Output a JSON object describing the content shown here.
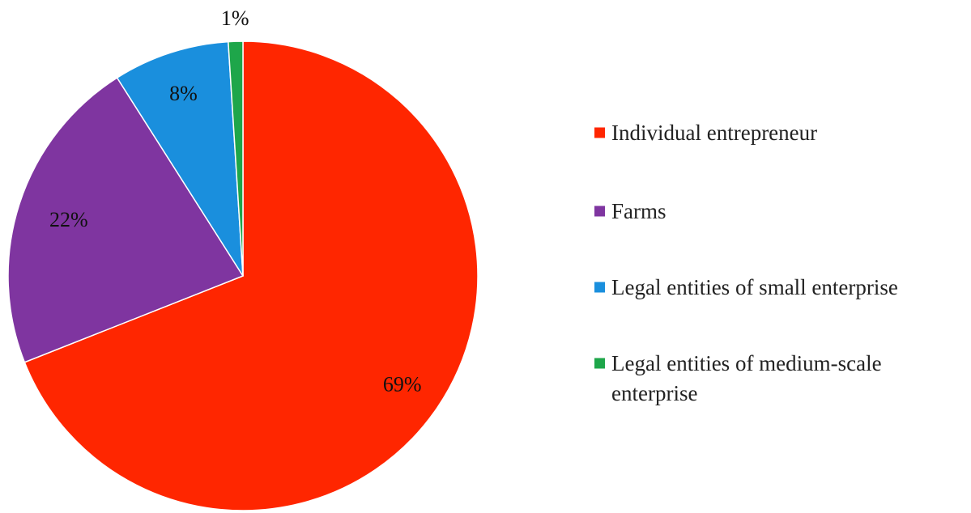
{
  "chart_data": {
    "type": "pie",
    "categories": [
      "Individual entrepreneur",
      "Farms",
      "Legal entities of small enterprise",
      "Legal entities of medium-scale enterprise"
    ],
    "values": [
      69,
      22,
      8,
      1
    ],
    "value_labels": [
      "69%",
      "22%",
      "8%",
      "1%"
    ],
    "legend_lines": [
      [
        "Individual entrepreneur"
      ],
      [
        "Farms"
      ],
      [
        "Legal entities of small enterprise"
      ],
      [
        "Legal entities of medium-scale",
        "enterprise"
      ]
    ],
    "colors": [
      "#ff2600",
      "#7f35a0",
      "#1a8fdd",
      "#1ea64a"
    ],
    "legend_position": "right",
    "start_angle": "12 o'clock",
    "direction": "clockwise"
  }
}
